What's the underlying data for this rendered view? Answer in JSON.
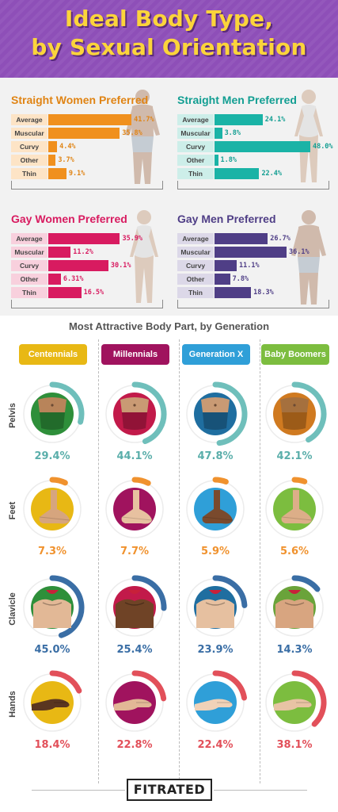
{
  "title_line1": "Ideal Body Type,",
  "title_line2": "by Sexual Orientation",
  "gen_section_title": "Most Attractive Body Part, by Generation",
  "logo": "FITRATED",
  "colors": {
    "header_bg": "#8e4fb8",
    "title_yellow": "#fbd43b",
    "straight_women": "#f0901e",
    "straight_men": "#1ab3a6",
    "gay_women": "#d81b60",
    "gay_men": "#4f3e86"
  },
  "panels": [
    {
      "title": "Straight Women Preferred",
      "color": "#f0901e",
      "light": "#fde4c6",
      "text": "#e08414",
      "silhouette": "man-silhouette-icon"
    },
    {
      "title": "Straight Men Preferred",
      "color": "#1ab3a6",
      "light": "#cdeee9",
      "text": "#129e92",
      "silhouette": "woman-silhouette-icon"
    },
    {
      "title": "Gay Women Preferred",
      "color": "#d81b60",
      "light": "#f8d0dd",
      "text": "#d81b60",
      "silhouette": "woman-silhouette-icon"
    },
    {
      "title": "Gay Men Preferred",
      "color": "#4f3e86",
      "light": "#dcd8e8",
      "text": "#4f3e86",
      "silhouette": "man-silhouette-icon"
    }
  ],
  "generations": [
    {
      "name": "Centennials",
      "color": "#e8b814"
    },
    {
      "name": "Millennials",
      "color": "#a0135e"
    },
    {
      "name": "Generation X",
      "color": "#2f9fd8"
    },
    {
      "name": "Baby Boomers",
      "color": "#7cbd3f"
    }
  ],
  "body_parts": [
    {
      "name": "Pelvis",
      "color": "#6fbfbb",
      "pct_color": "#5aaeaa",
      "icon": "pelvis-icon"
    },
    {
      "name": "Feet",
      "color": "#f0922e",
      "pct_color": "#f0922e",
      "icon": "foot-icon"
    },
    {
      "name": "Clavicle",
      "color": "#3a6ea5",
      "pct_color": "#3a6ea5",
      "icon": "clavicle-icon"
    },
    {
      "name": "Hands",
      "color": "#e2505a",
      "pct_color": "#e2505a",
      "icon": "hand-icon"
    }
  ],
  "chart_data": [
    {
      "type": "bar",
      "title": "Straight Women Preferred",
      "categories": [
        "Average",
        "Muscular",
        "Curvy",
        "Other",
        "Thin"
      ],
      "values": [
        41.7,
        35.8,
        4.4,
        3.7,
        9.1
      ],
      "labels": [
        "41.7%",
        "35.8%",
        "4.4%",
        "3.7%",
        "9.1%"
      ]
    },
    {
      "type": "bar",
      "title": "Straight Men Preferred",
      "categories": [
        "Average",
        "Muscular",
        "Curvy",
        "Other",
        "Thin"
      ],
      "values": [
        24.1,
        3.8,
        48.0,
        1.8,
        22.4
      ],
      "labels": [
        "24.1%",
        "3.8%",
        "48.0%",
        "1.8%",
        "22.4%"
      ]
    },
    {
      "type": "bar",
      "title": "Gay Women Preferred",
      "categories": [
        "Average",
        "Muscular",
        "Curvy",
        "Other",
        "Thin"
      ],
      "values": [
        35.9,
        11.2,
        30.1,
        6.31,
        16.5
      ],
      "labels": [
        "35.9%",
        "11.2%",
        "30.1%",
        "6.31%",
        "16.5%"
      ]
    },
    {
      "type": "bar",
      "title": "Gay Men Preferred",
      "categories": [
        "Average",
        "Muscular",
        "Curvy",
        "Other",
        "Thin"
      ],
      "values": [
        26.7,
        36.1,
        11.1,
        7.8,
        18.3
      ],
      "labels": [
        "26.7%",
        "36.1%",
        "11.1%",
        "7.8%",
        "18.3%"
      ]
    },
    {
      "type": "table",
      "title": "Most Attractive Body Part, by Generation",
      "columns": [
        "Centennials",
        "Millennials",
        "Generation X",
        "Baby Boomers"
      ],
      "rows": [
        "Pelvis",
        "Feet",
        "Clavicle",
        "Hands"
      ],
      "values": [
        [
          29.4,
          44.1,
          47.8,
          42.1
        ],
        [
          7.3,
          7.7,
          5.9,
          5.6
        ],
        [
          45.0,
          25.4,
          23.9,
          14.3
        ],
        [
          18.4,
          22.8,
          22.4,
          38.1
        ]
      ],
      "labels": [
        [
          "29.4%",
          "44.1%",
          "47.8%",
          "42.1%"
        ],
        [
          "7.3%",
          "7.7%",
          "5.9%",
          "5.6%"
        ],
        [
          "45.0%",
          "25.4%",
          "23.9%",
          "14.3%"
        ],
        [
          "18.4%",
          "22.8%",
          "22.4%",
          "38.1%"
        ]
      ]
    }
  ]
}
